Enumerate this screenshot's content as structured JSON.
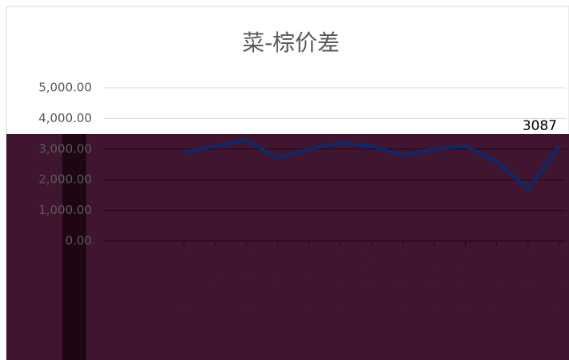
{
  "chart_data": {
    "type": "line",
    "title": "菜-棕价差",
    "categories": [
      "2020-08-31",
      "2020-09-30",
      "2020-10-31",
      "2020-11-30",
      "2020-12-31",
      "2021-01-31",
      "2021-02-28",
      "2021-03-31",
      "2021-04-30",
      "2021-05-31",
      "2021-06-30",
      "2021-07-31",
      "2021-08-31"
    ],
    "series": [
      {
        "name": "菜-棕价差",
        "color": "#0b2a6e",
        "values": [
          2900,
          3100,
          3300,
          2700,
          3000,
          3200,
          3100,
          2800,
          3000,
          3100,
          2600,
          1700,
          3087
        ]
      }
    ],
    "ylim": [
      0,
      5000
    ],
    "yticks": [
      {
        "value": 0,
        "label": "0.00"
      },
      {
        "value": 1000,
        "label": "1,000.00"
      },
      {
        "value": 2000,
        "label": "2,000.00"
      },
      {
        "value": 3000,
        "label": "3,000.00"
      },
      {
        "value": 4000,
        "label": "4,000.00"
      },
      {
        "value": 5000,
        "label": "5,000.00"
      }
    ],
    "grid": true
  }
}
